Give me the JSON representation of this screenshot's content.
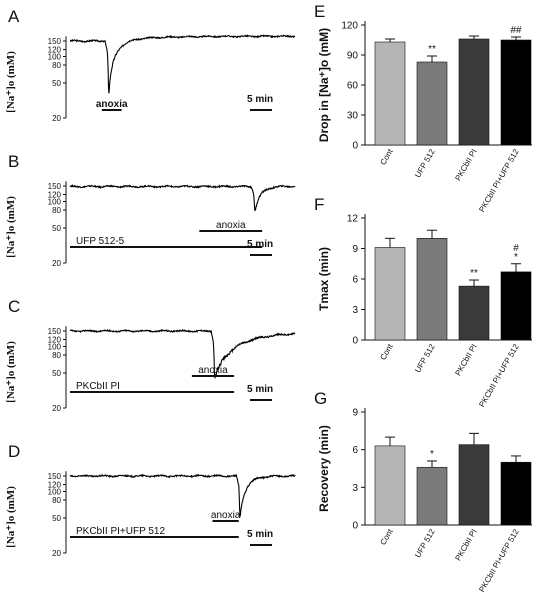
{
  "trace_panels": [
    {
      "letter": "A",
      "ylabel": "[Na⁺]o (mM)",
      "yticks": [
        "150",
        "120",
        "100",
        "80",
        "50",
        "20"
      ],
      "tick_values": [
        150,
        120,
        100,
        80,
        50,
        20
      ],
      "bars": [
        {
          "label": "anoxia",
          "start": 3.4,
          "end": 5.5
        }
      ],
      "scale_label": "5 min",
      "baseline": 150,
      "trace_color": "#000000",
      "dip": {
        "time": 4.0,
        "min": 35,
        "recovery": 0.9
      },
      "plateau_after": 170
    },
    {
      "letter": "B",
      "ylabel": "[Na⁺]o (mM)",
      "yticks": [
        "150",
        "120",
        "100",
        "80",
        "50",
        "20"
      ],
      "tick_values": [
        150,
        120,
        100,
        80,
        50,
        20
      ],
      "bars": [
        {
          "label": "anoxia",
          "start": 13.8,
          "end": 20.5
        },
        {
          "label": "UFP 512-5",
          "start": 0,
          "end": 20.5
        }
      ],
      "scale_label": "5 min",
      "baseline": 148,
      "trace_color": "#000000",
      "dip": {
        "time": 19.6,
        "min": 75,
        "recovery": 0.7
      },
      "plateau_after": 150
    },
    {
      "letter": "C",
      "ylabel": "[Na⁺]o (mM)",
      "yticks": [
        "150",
        "120",
        "100",
        "80",
        "50",
        "20"
      ],
      "tick_values": [
        150,
        120,
        100,
        80,
        50,
        20
      ],
      "bars": [
        {
          "label": "anoxia",
          "start": 13.0,
          "end": 17.5
        },
        {
          "label": "PKCbII PI",
          "start": 0,
          "end": 17.5
        }
      ],
      "scale_label": "5 min",
      "baseline": 150,
      "trace_color": "#000000",
      "dip": {
        "time": 15.3,
        "min": 42,
        "recovery": 3.0
      },
      "plateau_after": 145
    },
    {
      "letter": "D",
      "ylabel": "[Na⁺]o (mM)",
      "yticks": [
        "150",
        "120",
        "100",
        "80",
        "50",
        "20"
      ],
      "tick_values": [
        150,
        120,
        100,
        80,
        50,
        20
      ],
      "bars": [
        {
          "label": "anoxia",
          "start": 15.2,
          "end": 18.0
        },
        {
          "label": "PKCbII PI+UFP 512",
          "start": 0,
          "end": 18.0
        }
      ],
      "scale_label": "5 min",
      "baseline": 150,
      "trace_color": "#000000",
      "dip": {
        "time": 18.0,
        "min": 47,
        "recovery": 0.8
      },
      "plateau_after": 150
    }
  ],
  "chart_data": [
    {
      "panel": "E",
      "type": "bar",
      "ylabel": "Drop in [Na⁺]o (mM)",
      "categories": [
        "Cont",
        "UFP 512",
        "PKCbII PI",
        "PKCbII PI+UFP 512"
      ],
      "values": [
        103,
        83,
        106,
        105
      ],
      "errors": [
        3,
        6,
        3,
        3
      ],
      "significance": [
        "",
        "**",
        "",
        "##"
      ],
      "colors": [
        "#b5b5b5",
        "#7a7a7a",
        "#3a3a3a",
        "#000000"
      ],
      "ylim": [
        0,
        120
      ],
      "yticks": [
        0,
        30,
        60,
        90,
        120
      ]
    },
    {
      "panel": "F",
      "type": "bar",
      "ylabel": "Tmax (min)",
      "categories": [
        "Cont",
        "UFP 512",
        "PKCbII PI",
        "PKCbII PI+UFP 512"
      ],
      "values": [
        9.1,
        10.0,
        5.3,
        6.7
      ],
      "errors": [
        0.9,
        0.8,
        0.6,
        0.8
      ],
      "significance": [
        "",
        "",
        "**",
        "#\n*"
      ],
      "colors": [
        "#b5b5b5",
        "#7a7a7a",
        "#3a3a3a",
        "#000000"
      ],
      "ylim": [
        0,
        12
      ],
      "yticks": [
        0,
        3,
        6,
        9,
        12
      ]
    },
    {
      "panel": "G",
      "type": "bar",
      "ylabel": "Recovery (min)",
      "categories": [
        "Cont",
        "UFP 512",
        "PKCbII PI",
        "PKCbII PI+UFP 512"
      ],
      "values": [
        6.3,
        4.6,
        6.4,
        5.0
      ],
      "errors": [
        0.7,
        0.5,
        0.9,
        0.5
      ],
      "significance": [
        "",
        "*",
        "",
        ""
      ],
      "colors": [
        "#b5b5b5",
        "#7a7a7a",
        "#3a3a3a",
        "#000000"
      ],
      "ylim": [
        0,
        9
      ],
      "yticks": [
        0,
        3,
        6,
        9
      ]
    }
  ]
}
